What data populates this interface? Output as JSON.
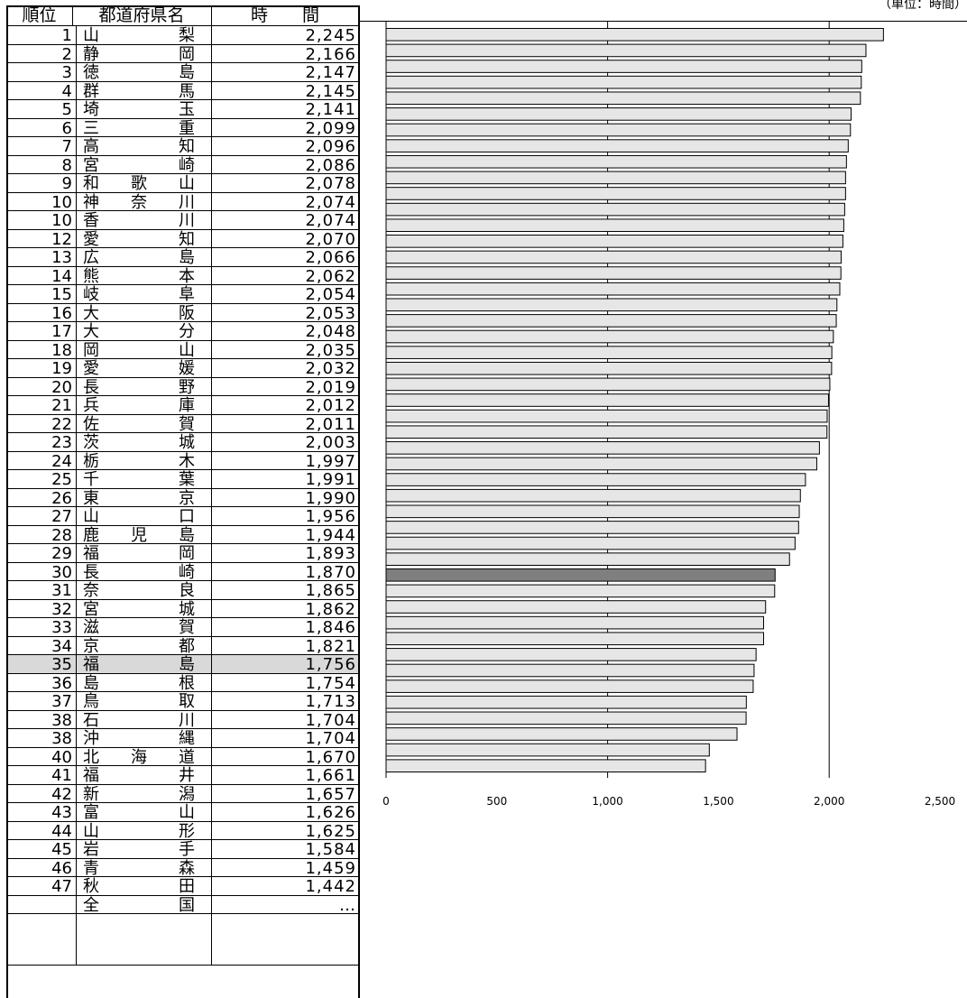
{
  "unit_label": "（単位：時間）",
  "table": {
    "headers": {
      "rank": "順位",
      "prefecture": "都道府県名",
      "hours": "時　　間"
    },
    "highlight_rank": 35,
    "national_total": {
      "prefecture": [
        "全",
        "国"
      ],
      "value": "…"
    }
  },
  "colors": {
    "bar_fill": "#e6e6e6",
    "bar_highlight": "#7f7f7f",
    "bar_stroke": "#000000",
    "row_highlight": "#d9d9d9"
  },
  "chart_data": {
    "type": "bar",
    "orientation": "horizontal",
    "xlim": [
      0,
      2500
    ],
    "x_ticks": [
      "0",
      "500",
      "1,000",
      "1,500",
      "2,000",
      "2,500"
    ],
    "grid": "vertical at 0, 1000, 2000",
    "rows": [
      {
        "rank": "1",
        "pref": [
          "山",
          "梨"
        ],
        "value": 2245,
        "label": "2,245"
      },
      {
        "rank": "2",
        "pref": [
          "静",
          "岡"
        ],
        "value": 2166,
        "label": "2,166"
      },
      {
        "rank": "3",
        "pref": [
          "徳",
          "島"
        ],
        "value": 2147,
        "label": "2,147"
      },
      {
        "rank": "4",
        "pref": [
          "群",
          "馬"
        ],
        "value": 2145,
        "label": "2,145"
      },
      {
        "rank": "5",
        "pref": [
          "埼",
          "玉"
        ],
        "value": 2141,
        "label": "2,141"
      },
      {
        "rank": "6",
        "pref": [
          "三",
          "重"
        ],
        "value": 2099,
        "label": "2,099"
      },
      {
        "rank": "7",
        "pref": [
          "高",
          "知"
        ],
        "value": 2096,
        "label": "2,096"
      },
      {
        "rank": "8",
        "pref": [
          "宮",
          "崎"
        ],
        "value": 2086,
        "label": "2,086"
      },
      {
        "rank": "9",
        "pref": [
          "和",
          "歌",
          "山"
        ],
        "value": 2078,
        "label": "2,078"
      },
      {
        "rank": "10",
        "pref": [
          "神",
          "奈",
          "川"
        ],
        "value": 2074,
        "label": "2,074"
      },
      {
        "rank": "10",
        "pref": [
          "香",
          "川"
        ],
        "value": 2074,
        "label": "2,074"
      },
      {
        "rank": "12",
        "pref": [
          "愛",
          "知"
        ],
        "value": 2070,
        "label": "2,070"
      },
      {
        "rank": "13",
        "pref": [
          "広",
          "島"
        ],
        "value": 2066,
        "label": "2,066"
      },
      {
        "rank": "14",
        "pref": [
          "熊",
          "本"
        ],
        "value": 2062,
        "label": "2,062"
      },
      {
        "rank": "15",
        "pref": [
          "岐",
          "阜"
        ],
        "value": 2054,
        "label": "2,054"
      },
      {
        "rank": "16",
        "pref": [
          "大",
          "阪"
        ],
        "value": 2053,
        "label": "2,053"
      },
      {
        "rank": "17",
        "pref": [
          "大",
          "分"
        ],
        "value": 2048,
        "label": "2,048"
      },
      {
        "rank": "18",
        "pref": [
          "岡",
          "山"
        ],
        "value": 2035,
        "label": "2,035"
      },
      {
        "rank": "19",
        "pref": [
          "愛",
          "媛"
        ],
        "value": 2032,
        "label": "2,032"
      },
      {
        "rank": "20",
        "pref": [
          "長",
          "野"
        ],
        "value": 2019,
        "label": "2,019"
      },
      {
        "rank": "21",
        "pref": [
          "兵",
          "庫"
        ],
        "value": 2012,
        "label": "2,012"
      },
      {
        "rank": "22",
        "pref": [
          "佐",
          "賀"
        ],
        "value": 2011,
        "label": "2,011"
      },
      {
        "rank": "23",
        "pref": [
          "茨",
          "城"
        ],
        "value": 2003,
        "label": "2,003"
      },
      {
        "rank": "24",
        "pref": [
          "栃",
          "木"
        ],
        "value": 1997,
        "label": "1,997"
      },
      {
        "rank": "25",
        "pref": [
          "千",
          "葉"
        ],
        "value": 1991,
        "label": "1,991"
      },
      {
        "rank": "26",
        "pref": [
          "東",
          "京"
        ],
        "value": 1990,
        "label": "1,990"
      },
      {
        "rank": "27",
        "pref": [
          "山",
          "口"
        ],
        "value": 1956,
        "label": "1,956"
      },
      {
        "rank": "28",
        "pref": [
          "鹿",
          "児",
          "島"
        ],
        "value": 1944,
        "label": "1,944"
      },
      {
        "rank": "29",
        "pref": [
          "福",
          "岡"
        ],
        "value": 1893,
        "label": "1,893"
      },
      {
        "rank": "30",
        "pref": [
          "長",
          "崎"
        ],
        "value": 1870,
        "label": "1,870"
      },
      {
        "rank": "31",
        "pref": [
          "奈",
          "良"
        ],
        "value": 1865,
        "label": "1,865"
      },
      {
        "rank": "32",
        "pref": [
          "宮",
          "城"
        ],
        "value": 1862,
        "label": "1,862"
      },
      {
        "rank": "33",
        "pref": [
          "滋",
          "賀"
        ],
        "value": 1846,
        "label": "1,846"
      },
      {
        "rank": "34",
        "pref": [
          "京",
          "都"
        ],
        "value": 1821,
        "label": "1,821"
      },
      {
        "rank": "35",
        "pref": [
          "福",
          "島"
        ],
        "value": 1756,
        "label": "1,756"
      },
      {
        "rank": "36",
        "pref": [
          "島",
          "根"
        ],
        "value": 1754,
        "label": "1,754"
      },
      {
        "rank": "37",
        "pref": [
          "鳥",
          "取"
        ],
        "value": 1713,
        "label": "1,713"
      },
      {
        "rank": "38",
        "pref": [
          "石",
          "川"
        ],
        "value": 1704,
        "label": "1,704"
      },
      {
        "rank": "38",
        "pref": [
          "沖",
          "縄"
        ],
        "value": 1704,
        "label": "1,704"
      },
      {
        "rank": "40",
        "pref": [
          "北",
          "海",
          "道"
        ],
        "value": 1670,
        "label": "1,670"
      },
      {
        "rank": "41",
        "pref": [
          "福",
          "井"
        ],
        "value": 1661,
        "label": "1,661"
      },
      {
        "rank": "42",
        "pref": [
          "新",
          "潟"
        ],
        "value": 1657,
        "label": "1,657"
      },
      {
        "rank": "43",
        "pref": [
          "富",
          "山"
        ],
        "value": 1626,
        "label": "1,626"
      },
      {
        "rank": "44",
        "pref": [
          "山",
          "形"
        ],
        "value": 1625,
        "label": "1,625"
      },
      {
        "rank": "45",
        "pref": [
          "岩",
          "手"
        ],
        "value": 1584,
        "label": "1,584"
      },
      {
        "rank": "46",
        "pref": [
          "青",
          "森"
        ],
        "value": 1459,
        "label": "1,459"
      },
      {
        "rank": "47",
        "pref": [
          "秋",
          "田"
        ],
        "value": 1442,
        "label": "1,442"
      }
    ]
  }
}
